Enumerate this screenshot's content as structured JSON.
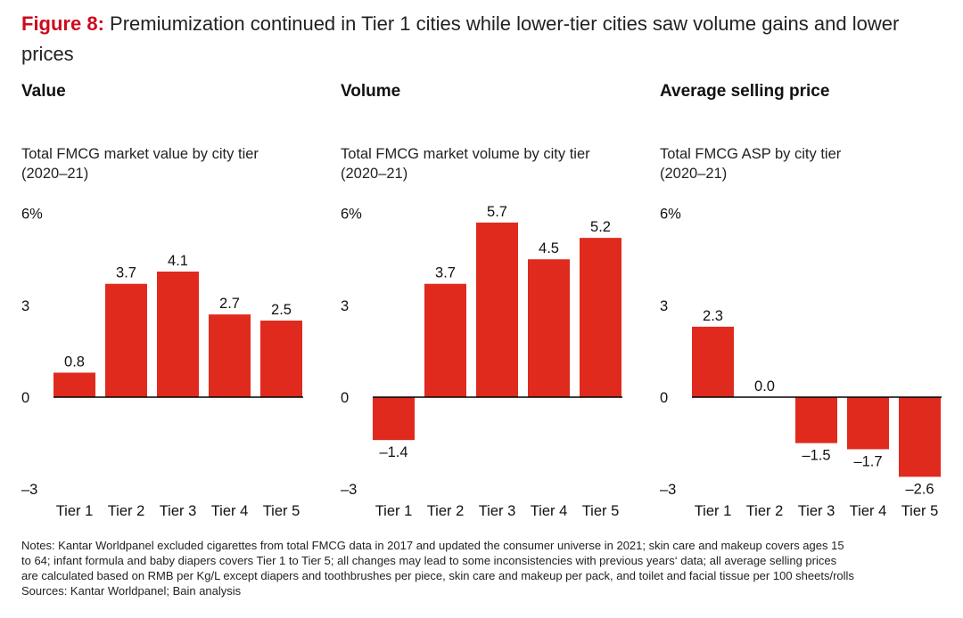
{
  "title": {
    "figure_label": "Figure 8:",
    "text": "Premiumization continued in Tier 1 cities while lower-tier cities saw volume gains and lower prices"
  },
  "colors": {
    "bar": "#e02a1d",
    "accent": "#cc0a1e",
    "axis": "#000000"
  },
  "panels": [
    {
      "heading": "Value",
      "subtitle_line1": "Total FMCG market value by city tier",
      "subtitle_line2": "(2020–21)"
    },
    {
      "heading": "Volume",
      "subtitle_line1": "Total FMCG market volume by city tier",
      "subtitle_line2": "(2020–21)"
    },
    {
      "heading": "Average selling price",
      "subtitle_line1": "Total FMCG ASP by city tier",
      "subtitle_line2": "(2020–21)"
    }
  ],
  "chart_data": [
    {
      "type": "bar",
      "title": "Value",
      "subtitle": "Total FMCG market value by city tier (2020–21)",
      "categories": [
        "Tier 1",
        "Tier 2",
        "Tier 3",
        "Tier 4",
        "Tier 5"
      ],
      "values": [
        0.8,
        3.7,
        4.1,
        2.7,
        2.5
      ],
      "value_labels": [
        "0.8",
        "3.7",
        "4.1",
        "2.7",
        "2.5"
      ],
      "ylim": [
        -3,
        6
      ],
      "yticks": [
        6,
        3,
        0,
        -3
      ],
      "ytick_labels": [
        "6%",
        "3",
        "0",
        "–3"
      ],
      "grid": false
    },
    {
      "type": "bar",
      "title": "Volume",
      "subtitle": "Total FMCG market volume by city tier (2020–21)",
      "categories": [
        "Tier 1",
        "Tier 2",
        "Tier 3",
        "Tier 4",
        "Tier 5"
      ],
      "values": [
        -1.4,
        3.7,
        5.7,
        4.5,
        5.2
      ],
      "value_labels": [
        "–1.4",
        "3.7",
        "5.7",
        "4.5",
        "5.2"
      ],
      "ylim": [
        -3,
        6
      ],
      "yticks": [
        6,
        3,
        0,
        -3
      ],
      "ytick_labels": [
        "6%",
        "3",
        "0",
        "–3"
      ],
      "grid": false
    },
    {
      "type": "bar",
      "title": "Average selling price",
      "subtitle": "Total FMCG ASP by city tier (2020–21)",
      "categories": [
        "Tier 1",
        "Tier 2",
        "Tier 3",
        "Tier 4",
        "Tier 5"
      ],
      "values": [
        2.3,
        0.0,
        -1.5,
        -1.7,
        -2.6
      ],
      "value_labels": [
        "2.3",
        "0.0",
        "–1.5",
        "–1.7",
        "–2.6"
      ],
      "ylim": [
        -3,
        6
      ],
      "yticks": [
        6,
        3,
        0,
        -3
      ],
      "ytick_labels": [
        "6%",
        "3",
        "0",
        "–3"
      ],
      "grid": false
    }
  ],
  "notes": {
    "line1": "Notes: Kantar Worldpanel excluded cigarettes from total FMCG data in 2017 and updated the consumer universe in 2021; skin care and makeup covers ages 15",
    "line2": "to 64; infant formula and baby diapers covers Tier 1 to Tier 5; all changes may lead to some inconsistencies with previous years‘ data; all average selling prices",
    "line3": "are calculated based on RMB per Kg/L except diapers and toothbrushes per piece, skin care and makeup per pack, and toilet and facial tissue per 100 sheets/rolls",
    "sources": "Sources: Kantar Worldpanel; Bain analysis"
  }
}
